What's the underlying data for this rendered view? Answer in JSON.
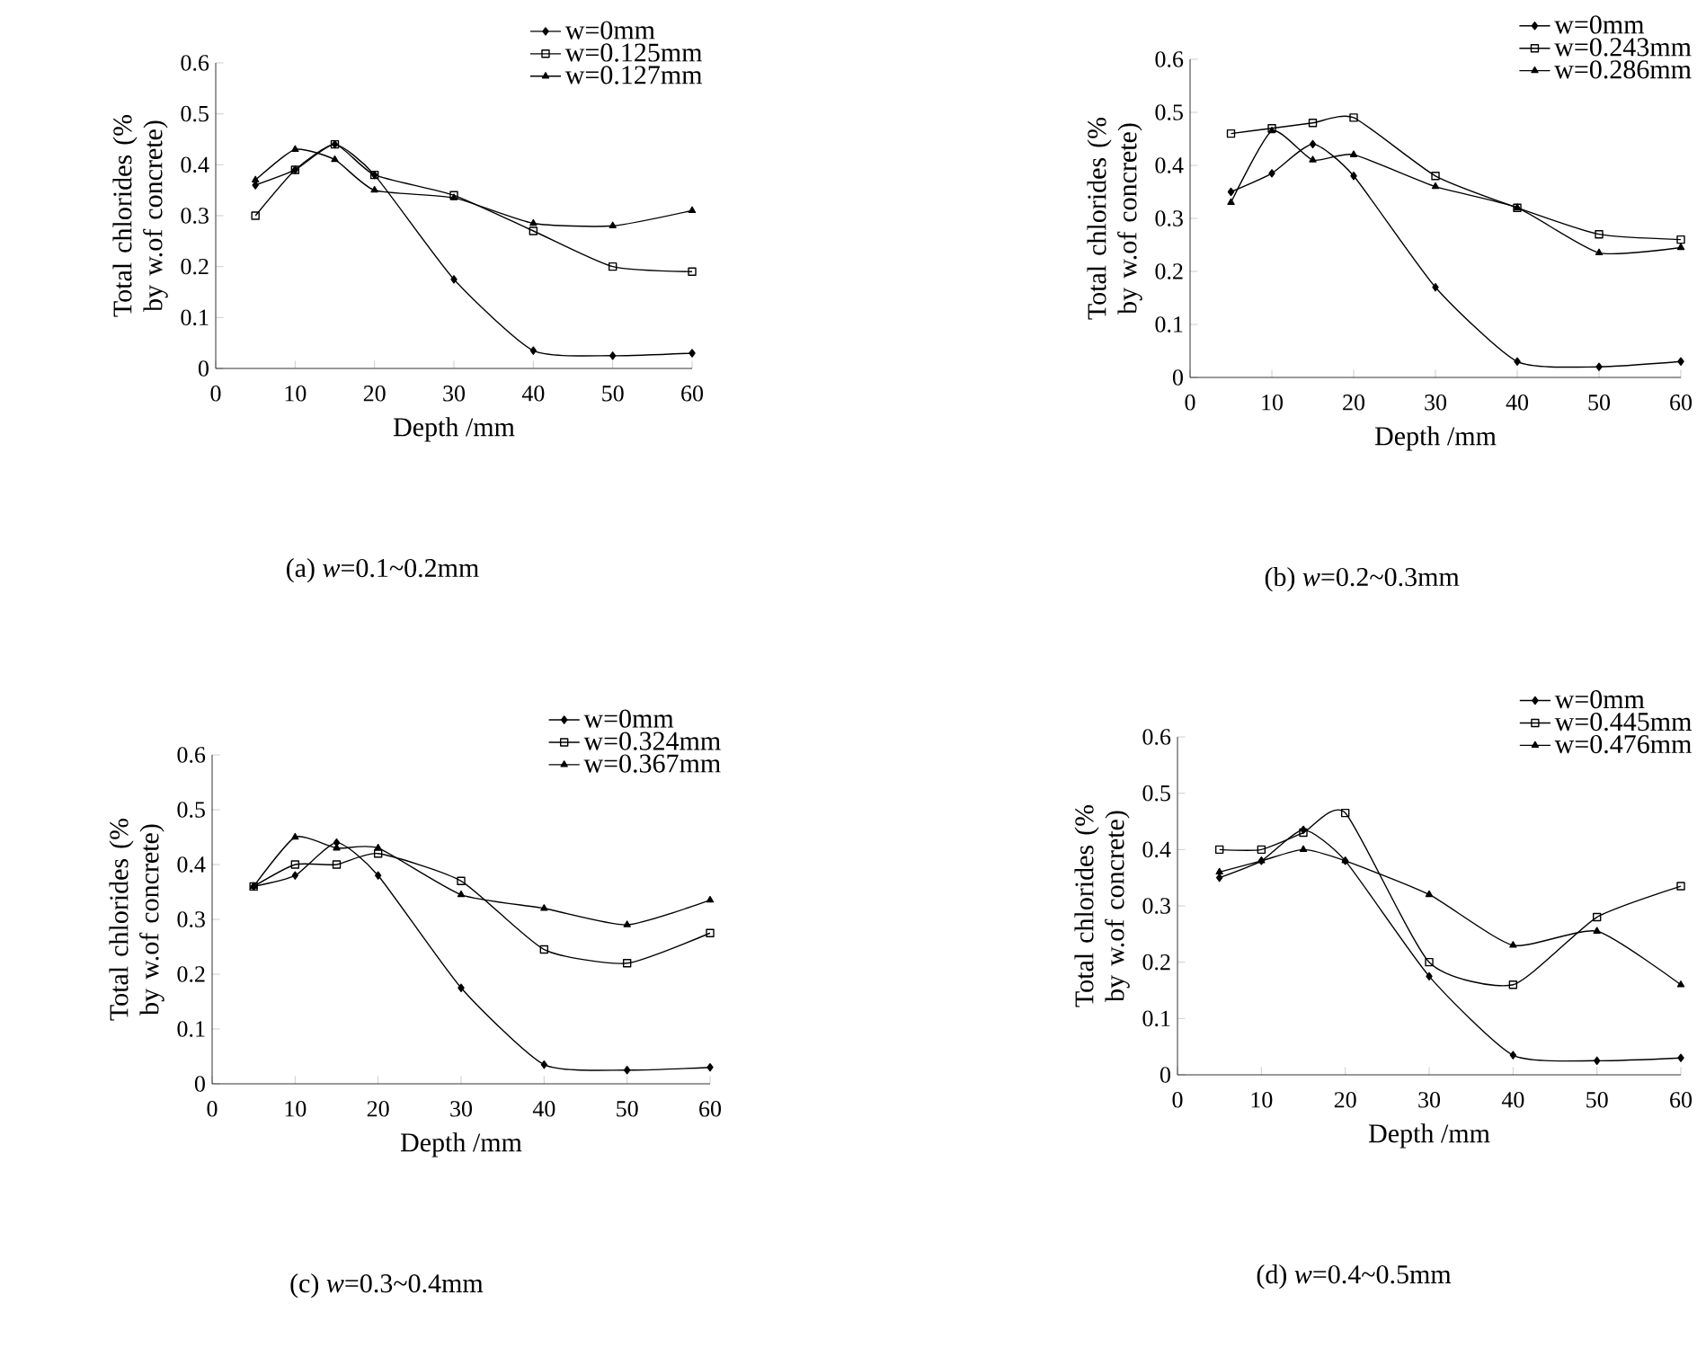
{
  "chart_data": [
    {
      "type": "line",
      "title": "(a) *w*=0.1~0.2mm",
      "xlabel": "Depth /mm",
      "ylabel": "Total chlorides (% by w.of concrete)",
      "x": [
        5,
        10,
        15,
        20,
        30,
        40,
        50,
        60
      ],
      "xlim": [
        0,
        60
      ],
      "xticks": [
        0,
        10,
        20,
        30,
        40,
        50,
        60
      ],
      "ylim": [
        0,
        0.6
      ],
      "yticks": [
        0,
        0.1,
        0.2,
        0.3,
        0.4,
        0.5,
        0.6
      ],
      "legend": "top right",
      "line_style": "solid",
      "series": [
        {
          "name": "w=0mm",
          "color": "#000000",
          "marker": "diamond",
          "values": [
            0.36,
            0.39,
            0.44,
            0.38,
            0.175,
            0.035,
            0.025,
            0.03
          ]
        },
        {
          "name": "w=0.125mm",
          "color": "#000000",
          "marker": "square",
          "values": [
            0.3,
            0.39,
            0.44,
            0.38,
            0.34,
            0.27,
            0.2,
            0.19
          ]
        },
        {
          "name": "w=0.127mm",
          "color": "#000000",
          "marker": "triangle",
          "values": [
            0.37,
            0.43,
            0.41,
            0.35,
            0.335,
            0.285,
            0.28,
            0.31
          ]
        }
      ]
    },
    {
      "type": "line",
      "title": "(b) *w*=0.2~0.3mm",
      "xlabel": "Depth /mm",
      "ylabel": "Total chlorides (% by w.of concrete)",
      "x": [
        5,
        10,
        15,
        20,
        30,
        40,
        50,
        60
      ],
      "xlim": [
        0,
        60
      ],
      "xticks": [
        0,
        10,
        20,
        30,
        40,
        50,
        60
      ],
      "ylim": [
        0,
        0.6
      ],
      "yticks": [
        0,
        0.1,
        0.2,
        0.3,
        0.4,
        0.5,
        0.6
      ],
      "legend": "top right",
      "line_style": "solid",
      "series": [
        {
          "name": "w=0mm",
          "color": "#000000",
          "marker": "diamond",
          "values": [
            0.35,
            0.385,
            0.44,
            0.38,
            0.17,
            0.03,
            0.02,
            0.03
          ]
        },
        {
          "name": "w=0.243mm",
          "color": "#000000",
          "marker": "square",
          "values": [
            0.46,
            0.47,
            0.48,
            0.49,
            0.38,
            0.32,
            0.27,
            0.26
          ]
        },
        {
          "name": "w=0.286mm",
          "color": "#000000",
          "marker": "triangle",
          "values": [
            0.33,
            0.465,
            0.41,
            0.42,
            0.36,
            0.32,
            0.235,
            0.245
          ]
        }
      ]
    },
    {
      "type": "line",
      "title": "(c) *w*=0.3~0.4mm",
      "xlabel": "Depth /mm",
      "ylabel": "Total chlorides (% by w.of concrete)",
      "x": [
        5,
        10,
        15,
        20,
        30,
        40,
        50,
        60
      ],
      "xlim": [
        0,
        60
      ],
      "xticks": [
        0,
        10,
        20,
        30,
        40,
        50,
        60
      ],
      "ylim": [
        0,
        0.6
      ],
      "yticks": [
        0,
        0.1,
        0.2,
        0.3,
        0.4,
        0.5,
        0.6
      ],
      "legend": "top right",
      "line_style": "solid",
      "series": [
        {
          "name": "w=0mm",
          "color": "#000000",
          "marker": "diamond",
          "values": [
            0.36,
            0.38,
            0.44,
            0.38,
            0.175,
            0.035,
            0.025,
            0.03
          ]
        },
        {
          "name": "w=0.324mm",
          "color": "#000000",
          "marker": "square",
          "values": [
            0.36,
            0.4,
            0.4,
            0.42,
            0.37,
            0.245,
            0.22,
            0.275
          ]
        },
        {
          "name": "w=0.367mm",
          "color": "#000000",
          "marker": "triangle",
          "values": [
            0.36,
            0.45,
            0.43,
            0.43,
            0.345,
            0.32,
            0.29,
            0.335
          ]
        }
      ]
    },
    {
      "type": "line",
      "title": "(d) *w*=0.4~0.5mm",
      "xlabel": "Depth /mm",
      "ylabel": "Total chlorides (% by w.of concrete)",
      "x": [
        5,
        10,
        15,
        20,
        30,
        40,
        50,
        60
      ],
      "xlim": [
        0,
        60
      ],
      "xticks": [
        0,
        10,
        20,
        30,
        40,
        50,
        60
      ],
      "ylim": [
        0,
        0.6
      ],
      "yticks": [
        0,
        0.1,
        0.2,
        0.3,
        0.4,
        0.5,
        0.6
      ],
      "legend": "top right",
      "line_style": "solid",
      "series": [
        {
          "name": "w=0mm",
          "color": "#000000",
          "marker": "diamond",
          "values": [
            0.35,
            0.38,
            0.435,
            0.38,
            0.175,
            0.035,
            0.025,
            0.03
          ]
        },
        {
          "name": "w=0.445mm",
          "color": "#000000",
          "marker": "square",
          "values": [
            0.4,
            0.4,
            0.43,
            0.465,
            0.2,
            0.16,
            0.28,
            0.335
          ]
        },
        {
          "name": "w=0.476mm",
          "color": "#000000",
          "marker": "triangle",
          "values": [
            0.36,
            0.38,
            0.4,
            0.38,
            0.32,
            0.23,
            0.255,
            0.16
          ]
        }
      ]
    }
  ]
}
